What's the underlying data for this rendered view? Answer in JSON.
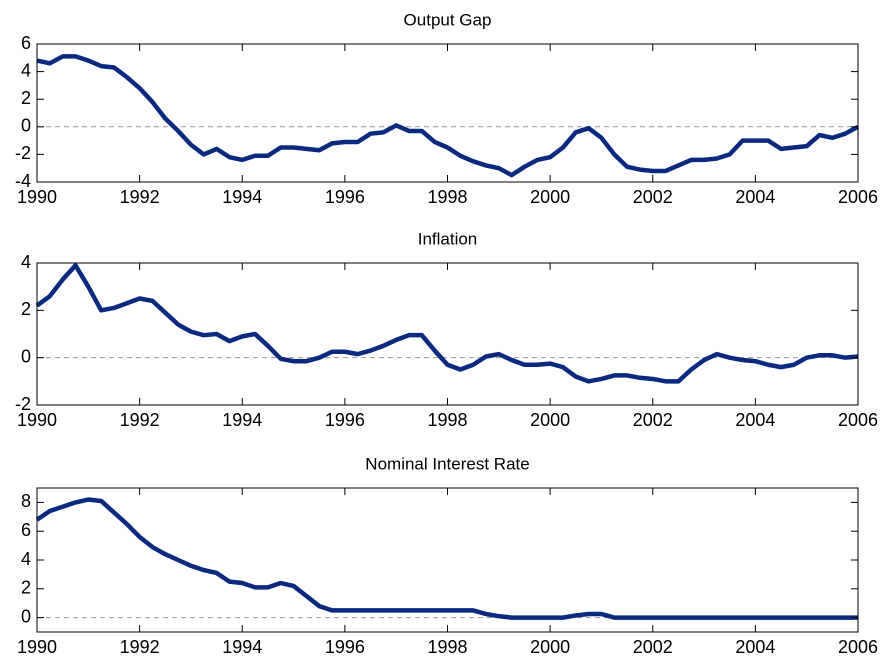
{
  "chart_data": [
    {
      "type": "line",
      "title": "Output Gap",
      "x": [
        1990,
        1990.25,
        1990.5,
        1990.75,
        1991,
        1991.25,
        1991.5,
        1991.75,
        1992,
        1992.25,
        1992.5,
        1992.75,
        1993,
        1993.25,
        1993.5,
        1993.75,
        1994,
        1994.25,
        1994.5,
        1994.75,
        1995,
        1995.25,
        1995.5,
        1995.75,
        1996,
        1996.25,
        1996.5,
        1996.75,
        1997,
        1997.25,
        1997.5,
        1997.75,
        1998,
        1998.25,
        1998.5,
        1998.75,
        1999,
        1999.25,
        1999.5,
        1999.75,
        2000,
        2000.25,
        2000.5,
        2000.75,
        2001,
        2001.25,
        2001.5,
        2001.75,
        2002,
        2002.25,
        2002.5,
        2002.75,
        2003,
        2003.25,
        2003.5,
        2003.75,
        2004,
        2004.25,
        2004.5,
        2004.75,
        2005,
        2005.25,
        2005.5,
        2005.75,
        2006
      ],
      "series": [
        {
          "color": "#0a2a80",
          "values": [
            4.8,
            4.6,
            5.1,
            5.1,
            4.8,
            4.4,
            4.3,
            3.6,
            2.8,
            1.8,
            0.6,
            -0.3,
            -1.3,
            -2.0,
            -1.6,
            -2.2,
            -2.4,
            -2.1,
            -2.1,
            -1.5,
            -1.5,
            -1.6,
            -1.7,
            -1.2,
            -1.1,
            -1.1,
            -0.5,
            -0.4,
            0.1,
            -0.3,
            -0.3,
            -1.1,
            -1.5,
            -2.1,
            -2.5,
            -2.8,
            -3.0,
            -3.5,
            -2.9,
            -2.4,
            -2.2,
            -1.5,
            -0.4,
            -0.1,
            -0.8,
            -2.0,
            -2.9,
            -3.1,
            -3.2,
            -3.2,
            -2.8,
            -2.4,
            -2.4,
            -2.3,
            -2.0,
            -1.0,
            -1.0,
            -1.0,
            -1.6,
            -1.5,
            -1.4,
            -0.6,
            -0.8,
            -0.5,
            0.0
          ]
        }
      ],
      "xlim": [
        1990,
        2006
      ],
      "xticks": [
        1990,
        1992,
        1994,
        1996,
        1998,
        2000,
        2002,
        2004,
        2006
      ],
      "ylim": [
        -4,
        6
      ],
      "yticks": [
        -4,
        -2,
        0,
        2,
        4,
        6
      ],
      "reference_line": 0
    },
    {
      "type": "line",
      "title": "Inflation",
      "x": [
        1990,
        1990.25,
        1990.5,
        1990.75,
        1991,
        1991.25,
        1991.5,
        1991.75,
        1992,
        1992.25,
        1992.5,
        1992.75,
        1993,
        1993.25,
        1993.5,
        1993.75,
        1994,
        1994.25,
        1994.5,
        1994.75,
        1995,
        1995.25,
        1995.5,
        1995.75,
        1996,
        1996.25,
        1996.5,
        1996.75,
        1997,
        1997.25,
        1997.5,
        1997.75,
        1998,
        1998.25,
        1998.5,
        1998.75,
        1999,
        1999.25,
        1999.5,
        1999.75,
        2000,
        2000.25,
        2000.5,
        2000.75,
        2001,
        2001.25,
        2001.5,
        2001.75,
        2002,
        2002.25,
        2002.5,
        2002.75,
        2003,
        2003.25,
        2003.5,
        2003.75,
        2004,
        2004.25,
        2004.5,
        2004.75,
        2005,
        2005.25,
        2005.5,
        2005.75,
        2006
      ],
      "series": [
        {
          "color": "#0a2a80",
          "values": [
            2.2,
            2.6,
            3.3,
            3.9,
            3.0,
            2.0,
            2.1,
            2.3,
            2.5,
            2.4,
            1.9,
            1.4,
            1.1,
            0.95,
            1.0,
            0.7,
            0.9,
            1.0,
            0.5,
            -0.05,
            -0.15,
            -0.15,
            0.0,
            0.25,
            0.25,
            0.15,
            0.3,
            0.5,
            0.75,
            0.95,
            0.95,
            0.3,
            -0.3,
            -0.5,
            -0.3,
            0.05,
            0.15,
            -0.1,
            -0.3,
            -0.3,
            -0.25,
            -0.4,
            -0.8,
            -1.0,
            -0.9,
            -0.75,
            -0.75,
            -0.85,
            -0.9,
            -1.0,
            -1.0,
            -0.5,
            -0.1,
            0.15,
            0.0,
            -0.1,
            -0.15,
            -0.3,
            -0.4,
            -0.3,
            0.0,
            0.1,
            0.1,
            0.0,
            0.05
          ]
        }
      ],
      "xlim": [
        1990,
        2006
      ],
      "xticks": [
        1990,
        1992,
        1994,
        1996,
        1998,
        2000,
        2002,
        2004,
        2006
      ],
      "ylim": [
        -2,
        4
      ],
      "yticks": [
        -2,
        0,
        2,
        4
      ],
      "reference_line": 0
    },
    {
      "type": "line",
      "title": "Nominal Interest Rate",
      "x": [
        1990,
        1990.25,
        1990.5,
        1990.75,
        1991,
        1991.25,
        1991.5,
        1991.75,
        1992,
        1992.25,
        1992.5,
        1992.75,
        1993,
        1993.25,
        1993.5,
        1993.75,
        1994,
        1994.25,
        1994.5,
        1994.75,
        1995,
        1995.25,
        1995.5,
        1995.75,
        1996,
        1996.25,
        1996.5,
        1996.75,
        1997,
        1997.25,
        1997.5,
        1997.75,
        1998,
        1998.25,
        1998.5,
        1998.75,
        1999,
        1999.25,
        1999.5,
        1999.75,
        2000,
        2000.25,
        2000.5,
        2000.75,
        2001,
        2001.25,
        2001.5,
        2001.75,
        2002,
        2002.25,
        2002.5,
        2002.75,
        2003,
        2003.25,
        2003.5,
        2003.75,
        2004,
        2004.25,
        2004.5,
        2004.75,
        2005,
        2005.25,
        2005.5,
        2005.75,
        2006
      ],
      "series": [
        {
          "color": "#0a2a80",
          "values": [
            6.8,
            7.4,
            7.7,
            8.0,
            8.2,
            8.1,
            7.3,
            6.5,
            5.6,
            4.9,
            4.4,
            4.0,
            3.6,
            3.3,
            3.1,
            2.5,
            2.4,
            2.1,
            2.1,
            2.4,
            2.2,
            1.5,
            0.8,
            0.5,
            0.5,
            0.5,
            0.5,
            0.5,
            0.5,
            0.5,
            0.5,
            0.5,
            0.5,
            0.5,
            0.5,
            0.25,
            0.1,
            0,
            0,
            0,
            0,
            0,
            0.15,
            0.25,
            0.25,
            0,
            0,
            0,
            0,
            0,
            0,
            0,
            0,
            0,
            0,
            0,
            0,
            0,
            0,
            0,
            0,
            0,
            0,
            0,
            0
          ]
        }
      ],
      "xlim": [
        1990,
        2006
      ],
      "xticks": [
        1990,
        1992,
        1994,
        1996,
        1998,
        2000,
        2002,
        2004,
        2006
      ],
      "ylim": [
        -1,
        9
      ],
      "yticks": [
        0,
        2,
        4,
        6,
        8
      ],
      "reference_line": 0
    }
  ]
}
